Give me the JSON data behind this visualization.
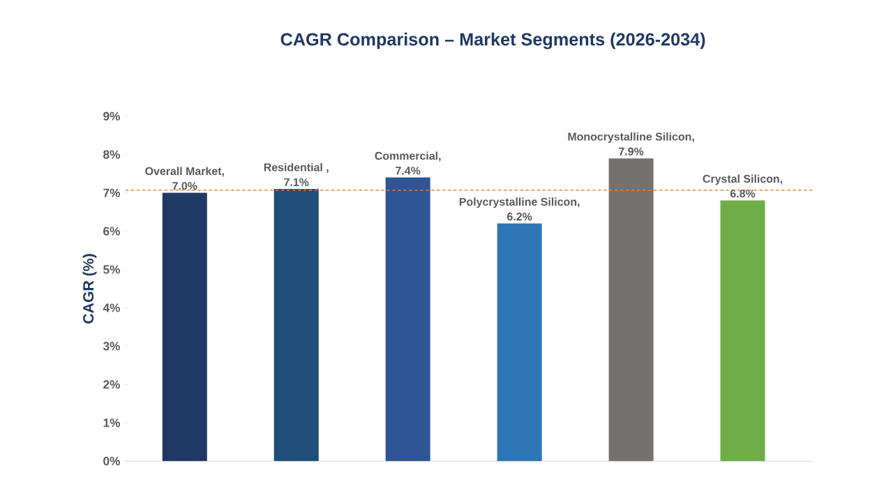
{
  "chart_data": {
    "type": "bar",
    "title": "CAGR Comparison – Market Segments (2026-2034)",
    "ylabel": "CAGR (%)",
    "categories": [
      null,
      null,
      null,
      null,
      null,
      null
    ],
    "values": [
      7.0,
      7.1,
      7.4,
      6.2,
      7.9,
      6.8
    ],
    "value_labels": [
      "Overall Market, 7.0%",
      "Residential , 7.1%",
      "Commercial, 7.4%",
      "Polycrystalline Silicon, 6.2%",
      "Monocrystalline Silicon, 7.9%",
      "Crystal Silicon, 6.8%"
    ],
    "colors": [
      "#203864",
      "#1f4e79",
      "#2f5597",
      "#2e75b6",
      "#767171",
      "#70ad47"
    ],
    "ylim": [
      0,
      9
    ],
    "yticks": [
      {
        "value": 0,
        "label": "0%"
      },
      {
        "value": 1,
        "label": "1%"
      },
      {
        "value": 2,
        "label": "2%"
      },
      {
        "value": 3,
        "label": "3%"
      },
      {
        "value": 4,
        "label": "4%"
      },
      {
        "value": 5,
        "label": "5%"
      },
      {
        "value": 6,
        "label": "6%"
      },
      {
        "value": 7,
        "label": "7%"
      },
      {
        "value": 8,
        "label": "8%"
      },
      {
        "value": 9,
        "label": "9%"
      }
    ],
    "ref_lines": [
      {
        "axis": "y",
        "value": 7.07,
        "color": "#ed7d31",
        "line_style": "dashed"
      }
    ],
    "grid": false,
    "tick_labels": "y"
  }
}
